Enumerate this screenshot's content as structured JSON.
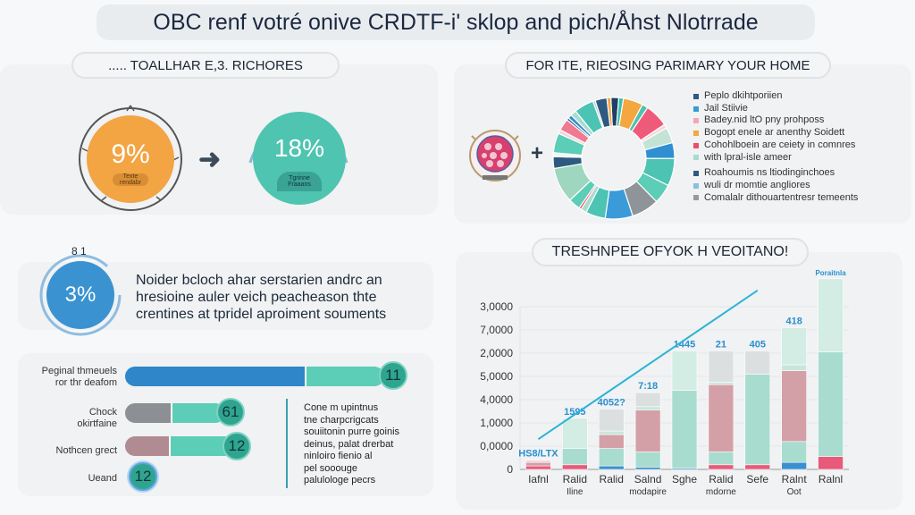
{
  "header": {
    "title": "OBC renf votré onive CRDTF-i' sklop and pich/Åhst Nlotrrade"
  },
  "left_panel": {
    "title": "..... TOALLHAR E,3. RICHORES",
    "from_value": "9%",
    "from_caption": "Texte rendabr",
    "to_value": "18%",
    "to_caption": "Tgrinne Fraaans",
    "arrow_icon": "arrow-right-icon"
  },
  "stat_panel": {
    "ring_label": "8 1",
    "value": "3%",
    "text_lines": [
      "Noider bcloch ahar serstarien andrc an",
      "hresioine auler veich peacheason thte",
      "crentines at tpridel aproiment souments"
    ]
  },
  "bars_panel": {
    "rows": [
      {
        "label": "Peginal thmeuels\nror thr deafom",
        "badge": "11",
        "split": 0.7,
        "left_color": "#2f86c8",
        "right_color": "#5ccdb6"
      },
      {
        "label": "Chock\nokirtfaine",
        "badge": "61",
        "split": 0.47,
        "left_color": "#8c8f93",
        "right_color": "#5ccdb6"
      },
      {
        "label": "Nothcen grect",
        "badge": "12",
        "split": 0.42,
        "left_color": "#b08c92",
        "right_color": "#5ccdb6"
      },
      {
        "label": "Ueand",
        "badge": "12"
      }
    ],
    "note_lines": [
      "Cone m upintnus",
      "tne charpcrigcats",
      "souiitonin purre goinis",
      "deinus, palat drerbat",
      "ninloiro fienio al",
      "pel sooouge",
      "palulologe pecrs"
    ]
  },
  "right_panel": {
    "title": "FOR ITE, RIEOSING PARIMARY YOUR HOME",
    "emblem_icon": "emblem-icon",
    "legend": [
      {
        "label": "Peplo dkihtporiien",
        "color": "#2d5a80"
      },
      {
        "label": "Jail Stiivie",
        "color": "#3a9bd0"
      },
      {
        "label": "Badey.nid ltO pny prohposs",
        "color": "#f0a8b8"
      },
      {
        "label": "Bogopt enele ar anenthy Soidett",
        "color": "#f4a640"
      },
      {
        "label": "Cohohlboein are ceiety in comnres",
        "color": "#e8506a"
      },
      {
        "label": "with lpral-isle ameer",
        "color": "#a8dccf"
      },
      {
        "label": "Roahoumis ns ltiodinginchoes",
        "color": "#2d5a80"
      },
      {
        "label": "wuli dr momtie angliores",
        "color": "#88c0e0"
      },
      {
        "label": "Comalalr dithouartentresr temeents",
        "color": "#9a9a9a"
      }
    ]
  },
  "chart_data": [
    {
      "type": "pie",
      "title": "",
      "donut": true,
      "values": [
        2,
        1.2,
        5,
        1.5,
        6,
        1,
        4,
        4,
        7,
        5,
        7,
        7,
        5,
        1.5,
        0.6,
        3,
        9,
        3,
        1,
        5,
        1,
        3,
        0.6,
        1,
        1.5,
        5,
        0.6,
        3,
        1
      ],
      "colors": [
        "#1f3f66",
        "#3cbfb0",
        "#f4a640",
        "#4cc3b3",
        "#ef5a7a",
        "#f3d6dc",
        "#c4e3d7",
        "#2f8fd0",
        "#4cc3b3",
        "#5ccdb6",
        "#8f9498",
        "#3a9bd8",
        "#4cc3b3",
        "#a8dccf",
        "#e8506a",
        "#5ccdb6",
        "#9fd6bf",
        "#2d5a80",
        "#f4f4f4",
        "#5ccdb6",
        "#f3d6dc",
        "#ef7a92",
        "#2d5a80",
        "#2f8fd0",
        "#a8dccf",
        "#4cc3b3",
        "#c0c8d0",
        "#2d5a80",
        "#f4a640"
      ]
    },
    {
      "type": "bar",
      "stacked": true,
      "title": "TRESHNPEE OFYOK H VEOITANO!",
      "ytick_labels": [
        "0",
        "0,0000",
        "1,0000",
        "4,0000",
        "5,0000",
        "2,0000",
        "7,0000",
        "3,0000"
      ],
      "ylim": [
        0,
        7
      ],
      "categories": [
        "Iafnl",
        "Ralid Iline",
        "Ralid",
        "Salnd modapire",
        "Sghe",
        "Ralid mdorne",
        "Sefe",
        "Ralnt Oot",
        "Ralnl"
      ],
      "bar_labels": [
        "HS8/LTX",
        "1595",
        "4052?",
        "7:18",
        "1445",
        "21",
        "405",
        "418",
        "Poraitnla"
      ],
      "stacks": [
        [
          [
            "#e8597a",
            0.15
          ],
          [
            "#d4a0a8",
            0.15
          ],
          [
            "#f0d6da",
            0.1
          ]
        ],
        [
          [
            "#e8597a",
            0.2
          ],
          [
            "#a8dccf",
            0.7
          ],
          [
            "#d3ece4",
            1.3
          ]
        ],
        [
          [
            "#3a8fd0",
            0.15
          ],
          [
            "#a8dccf",
            0.75
          ],
          [
            "#d4a0a8",
            0.6
          ],
          [
            "#c7e6dc",
            0.15
          ],
          [
            "#dcdfe0",
            0.95
          ]
        ],
        [
          [
            "#3a8fd0",
            0.1
          ],
          [
            "#a8dccf",
            0.65
          ],
          [
            "#d4a0a8",
            1.8
          ],
          [
            "#c7e6dc",
            0.15
          ],
          [
            "#dcdfe0",
            0.6
          ]
        ],
        [
          [
            "#3a8fd0",
            0.05
          ],
          [
            "#a8dccf",
            3.35
          ],
          [
            "#d3ece4",
            1.7
          ]
        ],
        [
          [
            "#e8597a",
            0.2
          ],
          [
            "#a8dccf",
            0.55
          ],
          [
            "#d4a0a8",
            2.9
          ],
          [
            "#c7e6dc",
            0.1
          ],
          [
            "#dcdfe0",
            1.35
          ]
        ],
        [
          [
            "#e8597a",
            0.2
          ],
          [
            "#a8dccf",
            3.9
          ],
          [
            "#dcdfe0",
            1.0
          ]
        ],
        [
          [
            "#3a8fd0",
            0.3
          ],
          [
            "#a8dccf",
            0.9
          ],
          [
            "#d4a0a8",
            3.05
          ],
          [
            "#c7e6dc",
            0.25
          ],
          [
            "#d3ece4",
            1.6
          ]
        ],
        [
          [
            "#e8597a",
            0.55
          ],
          [
            "#a8dccf",
            4.5
          ],
          [
            "#d3ece4",
            3.15
          ]
        ]
      ],
      "trend_line": {
        "color": "#2bb3d6",
        "points": [
          [
            0,
            1.3
          ],
          [
            6,
            7.7
          ]
        ]
      },
      "grid": true
    }
  ]
}
